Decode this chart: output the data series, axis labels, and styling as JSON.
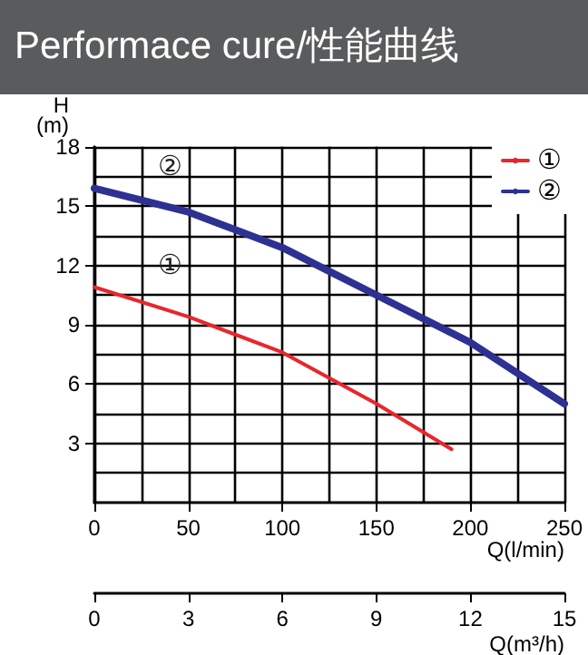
{
  "chart_data": {
    "type": "line",
    "title": "Performace cure/性能曲线",
    "ylabel": "H\n(m)",
    "xlabel": "Q(l/min)",
    "x2label": "Q(m³/h)",
    "xlim": [
      0,
      250
    ],
    "xticks": [
      0,
      50,
      100,
      150,
      200,
      250
    ],
    "x2lim": [
      0,
      15
    ],
    "x2ticks": [
      0,
      3,
      6,
      9,
      12,
      15
    ],
    "ylim": [
      0,
      18
    ],
    "yticks": [
      3,
      6,
      9,
      12,
      15,
      18
    ],
    "grid": true,
    "legend": "top right",
    "marker": "none",
    "line_style": "solid",
    "series": [
      {
        "name": "①",
        "color": "#e8262c",
        "x": [
          0,
          50,
          100,
          150,
          190
        ],
        "values": [
          10.9,
          9.4,
          7.6,
          5.0,
          2.7
        ]
      },
      {
        "name": "②",
        "color": "#2e3192",
        "x": [
          0,
          50,
          100,
          125,
          150,
          200,
          250
        ],
        "values": [
          15.9,
          14.7,
          12.9,
          11.7,
          10.5,
          8.1,
          5.0
        ]
      }
    ]
  }
}
